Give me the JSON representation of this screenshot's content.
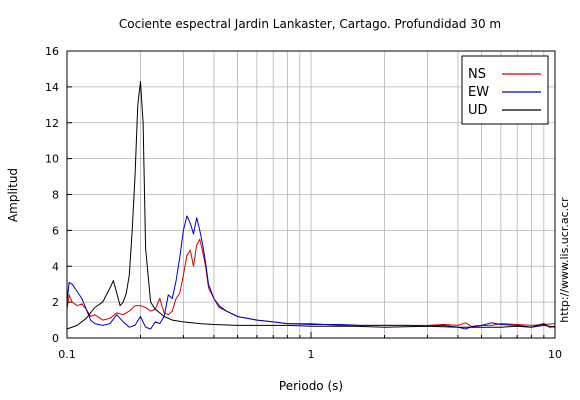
{
  "chart_data": {
    "type": "line",
    "title": "Cociente espectral Jardin Lankaster, Cartago. Profundidad 30 m",
    "xlabel": "Periodo (s)",
    "ylabel": "Amplitud",
    "xscale": "log",
    "xlim": [
      0.1,
      10
    ],
    "ylim": [
      0,
      16
    ],
    "xticks": [
      0.1,
      1,
      10
    ],
    "xtick_labels": [
      "0.1",
      "1",
      "10"
    ],
    "yticks": [
      0,
      2,
      4,
      6,
      8,
      10,
      12,
      14,
      16
    ],
    "grid": true,
    "legend_position": "top-right",
    "side_note": "http://www.lis.ucr.ac.cr",
    "series": [
      {
        "name": "NS",
        "color": "#d00000",
        "x": [
          0.1,
          0.102,
          0.105,
          0.11,
          0.115,
          0.12,
          0.125,
          0.13,
          0.14,
          0.15,
          0.16,
          0.17,
          0.18,
          0.19,
          0.2,
          0.21,
          0.22,
          0.23,
          0.24,
          0.25,
          0.26,
          0.27,
          0.28,
          0.29,
          0.3,
          0.31,
          0.32,
          0.33,
          0.34,
          0.35,
          0.36,
          0.37,
          0.38,
          0.4,
          0.42,
          0.45,
          0.5,
          0.6,
          0.7,
          0.8,
          1.0,
          1.3,
          1.6,
          2.0,
          2.5,
          3.0,
          3.5,
          4.0,
          4.3,
          4.6,
          5.0,
          5.5,
          6.0,
          7.0,
          8.0,
          9.0,
          10.0
        ],
        "y": [
          1.6,
          2.4,
          2.0,
          1.8,
          1.9,
          1.6,
          1.2,
          1.3,
          1.0,
          1.1,
          1.4,
          1.3,
          1.5,
          1.8,
          1.8,
          1.7,
          1.5,
          1.6,
          2.2,
          1.4,
          1.3,
          1.5,
          2.2,
          2.5,
          3.5,
          4.6,
          4.9,
          4.0,
          5.2,
          5.5,
          4.8,
          4.0,
          2.8,
          2.2,
          1.7,
          1.5,
          1.2,
          1.0,
          0.9,
          0.8,
          0.8,
          0.7,
          0.7,
          0.7,
          0.7,
          0.7,
          0.75,
          0.7,
          0.85,
          0.6,
          0.7,
          0.7,
          0.8,
          0.75,
          0.7,
          0.75,
          0.8
        ]
      },
      {
        "name": "EW",
        "color": "#0000c0",
        "x": [
          0.1,
          0.102,
          0.105,
          0.11,
          0.115,
          0.12,
          0.125,
          0.13,
          0.14,
          0.15,
          0.16,
          0.17,
          0.18,
          0.19,
          0.2,
          0.21,
          0.22,
          0.23,
          0.24,
          0.25,
          0.26,
          0.27,
          0.28,
          0.29,
          0.3,
          0.31,
          0.32,
          0.33,
          0.34,
          0.35,
          0.36,
          0.37,
          0.38,
          0.4,
          0.42,
          0.45,
          0.5,
          0.6,
          0.7,
          0.8,
          1.0,
          1.3,
          1.6,
          2.0,
          2.5,
          3.0,
          3.5,
          4.0,
          4.3,
          4.6,
          5.0,
          5.5,
          6.0,
          7.0,
          8.0,
          9.0,
          10.0
        ],
        "y": [
          2.0,
          3.1,
          3.0,
          2.6,
          2.2,
          1.6,
          1.0,
          0.8,
          0.7,
          0.8,
          1.3,
          0.9,
          0.6,
          0.7,
          1.2,
          0.6,
          0.5,
          0.9,
          0.8,
          1.2,
          2.4,
          2.2,
          3.2,
          4.5,
          6.0,
          6.8,
          6.4,
          5.8,
          6.7,
          6.0,
          5.2,
          4.2,
          3.0,
          2.2,
          1.8,
          1.5,
          1.2,
          1.0,
          0.9,
          0.8,
          0.75,
          0.75,
          0.7,
          0.7,
          0.7,
          0.65,
          0.7,
          0.6,
          0.5,
          0.65,
          0.7,
          0.85,
          0.75,
          0.7,
          0.6,
          0.7,
          0.6
        ]
      },
      {
        "name": "UD",
        "color": "#000000",
        "x": [
          0.1,
          0.11,
          0.12,
          0.13,
          0.14,
          0.15,
          0.155,
          0.16,
          0.165,
          0.17,
          0.175,
          0.18,
          0.185,
          0.19,
          0.195,
          0.2,
          0.205,
          0.21,
          0.22,
          0.23,
          0.24,
          0.25,
          0.27,
          0.3,
          0.35,
          0.4,
          0.5,
          0.6,
          0.8,
          1.0,
          1.5,
          2.0,
          3.0,
          4.0,
          5.0,
          6.0,
          7.0,
          8.0,
          9.0,
          9.5,
          10.0
        ],
        "y": [
          0.5,
          0.7,
          1.1,
          1.7,
          2.0,
          2.8,
          3.2,
          2.5,
          1.8,
          2.0,
          2.5,
          3.5,
          6.0,
          9.0,
          13.0,
          14.3,
          12.0,
          5.0,
          2.0,
          1.6,
          1.4,
          1.2,
          1.0,
          0.9,
          0.8,
          0.75,
          0.7,
          0.7,
          0.7,
          0.65,
          0.65,
          0.6,
          0.65,
          0.6,
          0.6,
          0.6,
          0.65,
          0.6,
          0.8,
          0.6,
          0.65
        ]
      }
    ]
  }
}
